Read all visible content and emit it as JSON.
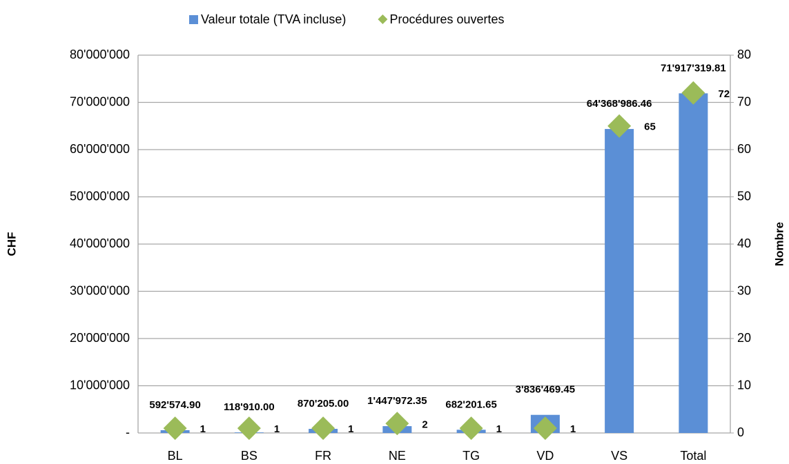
{
  "chart_data": {
    "type": "combo",
    "categories": [
      "BL",
      "BS",
      "FR",
      "NE",
      "TG",
      "VD",
      "VS",
      "Total"
    ],
    "series": [
      {
        "name": "Valeur totale (TVA incluse)",
        "type": "bar",
        "color": "#5b8fd6",
        "values": [
          592574.9,
          118910.0,
          870205.0,
          1447972.35,
          682201.65,
          3836469.45,
          64368986.46,
          71917319.81
        ],
        "value_labels": [
          "592'574.90",
          "118'910.00",
          "870'205.00",
          "1'447'972.35",
          "682'201.65",
          "3'836'469.45",
          "64'368'986.46",
          "71'917'319.81"
        ]
      },
      {
        "name": "Procédures ouvertes",
        "type": "scatter",
        "axis": "y2",
        "color": "#9bbb59",
        "values": [
          1,
          1,
          1,
          2,
          1,
          1,
          65,
          72
        ]
      }
    ],
    "ylabel": "CHF",
    "y2label": "Nombre",
    "ylim": [
      0,
      80000000
    ],
    "yticks": [
      {
        "value": 0,
        "label": "-"
      },
      {
        "value": 10000000,
        "label": "10'000'000"
      },
      {
        "value": 20000000,
        "label": "20'000'000"
      },
      {
        "value": 30000000,
        "label": "30'000'000"
      },
      {
        "value": 40000000,
        "label": "40'000'000"
      },
      {
        "value": 50000000,
        "label": "50'000'000"
      },
      {
        "value": 60000000,
        "label": "60'000'000"
      },
      {
        "value": 70000000,
        "label": "70'000'000"
      },
      {
        "value": 80000000,
        "label": "80'000'000"
      }
    ],
    "y2lim": [
      0,
      80
    ],
    "y2ticks": [
      0,
      10,
      20,
      30,
      40,
      50,
      60,
      70,
      80
    ],
    "grid": true,
    "legend": "top"
  }
}
